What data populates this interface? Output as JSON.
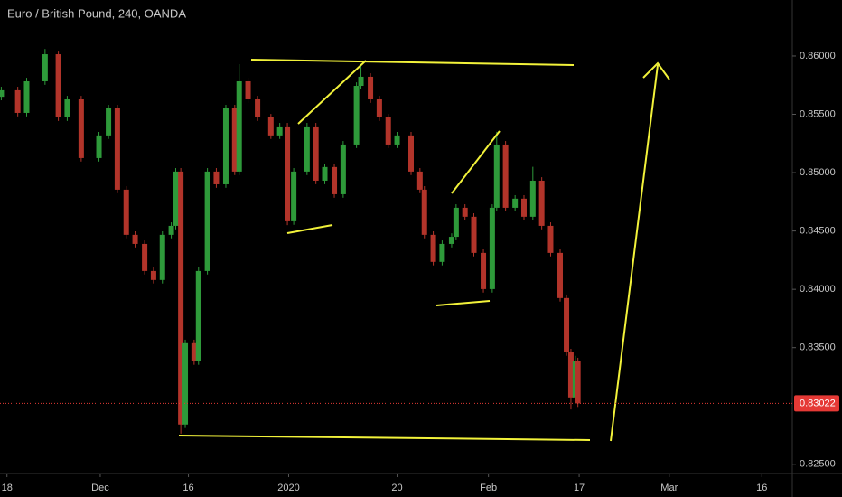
{
  "chart_data": {
    "type": "candlestick",
    "title": "Euro / British Pound, 240, OANDA",
    "x": [
      -0.9,
      1.7,
      3.1,
      6.0,
      8.1,
      9.5,
      11.7,
      14.5,
      16.0,
      17.4,
      18.8,
      20.2,
      21.7,
      23.1,
      24.5,
      25.9,
      26.6,
      27.4,
      28.1,
      29.5,
      30.2,
      31.6,
      33.0,
      34.5,
      35.9,
      36.6,
      38.0,
      39.5,
      41.6,
      43.0,
      44.2,
      45.2,
      47.3,
      48.7,
      50.1,
      51.6,
      53.0,
      55.1,
      55.8,
      57.3,
      58.7,
      60.1,
      61.5,
      63.7,
      65.1,
      65.8,
      67.2,
      68.6,
      70.1,
      70.8,
      72.2,
      73.6,
      75.1,
      76.5,
      77.2,
      78.6,
      80.1,
      81.5,
      82.9,
      84.3,
      85.7,
      87.2,
      88.2,
      88.9,
      89.6,
      90.0
    ],
    "open": [
      0.8565,
      0.85706,
      0.85512,
      0.85783,
      0.86015,
      0.85473,
      0.85628,
      0.85125,
      0.85319,
      0.85551,
      0.84854,
      0.84467,
      0.84389,
      0.84157,
      0.8408,
      0.84467,
      0.84544,
      0.85009,
      0.82841,
      0.83538,
      0.83383,
      0.84157,
      0.85009,
      0.849,
      0.85551,
      0.85009,
      0.85783,
      0.85628,
      0.85473,
      0.85319,
      0.85396,
      0.84583,
      0.85009,
      0.85396,
      0.84931,
      0.85048,
      0.84815,
      0.85241,
      0.85744,
      0.85822,
      0.85628,
      0.85473,
      0.85241,
      0.85319,
      0.85009,
      0.84854,
      0.84467,
      0.84235,
      0.84389,
      0.8445,
      0.84699,
      0.84622,
      0.84312,
      0.84002,
      0.84699,
      0.85241,
      0.84699,
      0.84777,
      0.84622,
      0.84931,
      0.84544,
      0.84312,
      0.83925,
      0.8346,
      0.83073,
      0.83383
    ],
    "high": [
      0.85736,
      0.85736,
      0.85813,
      0.8606,
      0.86045,
      0.85658,
      0.85658,
      0.85349,
      0.85581,
      0.85581,
      0.84884,
      0.84497,
      0.84419,
      0.84187,
      0.84497,
      0.84574,
      0.85039,
      0.85039,
      0.83568,
      0.83568,
      0.84187,
      0.85039,
      0.85039,
      0.85581,
      0.85581,
      0.8593,
      0.85813,
      0.85658,
      0.85503,
      0.85426,
      0.85426,
      0.85039,
      0.85426,
      0.85426,
      0.85078,
      0.85078,
      0.85271,
      0.85774,
      0.8593,
      0.85852,
      0.85658,
      0.85503,
      0.85349,
      0.85349,
      0.85039,
      0.84884,
      0.84497,
      0.84419,
      0.8448,
      0.84729,
      0.84729,
      0.84652,
      0.84342,
      0.84729,
      0.8535,
      0.85271,
      0.84807,
      0.84807,
      0.8505,
      0.84961,
      0.84574,
      0.84342,
      0.83955,
      0.8349,
      0.8343,
      0.83413
    ],
    "low": [
      0.8562,
      0.85482,
      0.85482,
      0.85753,
      0.85443,
      0.85443,
      0.85095,
      0.85095,
      0.85289,
      0.84824,
      0.84437,
      0.84359,
      0.84127,
      0.8405,
      0.8405,
      0.84437,
      0.84514,
      0.82763,
      0.82811,
      0.83353,
      0.83353,
      0.84127,
      0.8487,
      0.8487,
      0.84979,
      0.84979,
      0.85598,
      0.85443,
      0.85289,
      0.85289,
      0.8455,
      0.84553,
      0.84979,
      0.84901,
      0.84901,
      0.84785,
      0.84785,
      0.85211,
      0.85714,
      0.85598,
      0.85443,
      0.85211,
      0.85211,
      0.84979,
      0.84824,
      0.84437,
      0.84205,
      0.84205,
      0.84359,
      0.8442,
      0.84592,
      0.84282,
      0.83972,
      0.83972,
      0.84669,
      0.84669,
      0.84669,
      0.84592,
      0.84592,
      0.84514,
      0.84282,
      0.83895,
      0.8343,
      0.8297,
      0.83043,
      0.82992
    ],
    "close": [
      0.85706,
      0.85512,
      0.85783,
      0.86015,
      0.85473,
      0.85628,
      0.85125,
      0.85319,
      0.85551,
      0.84854,
      0.84467,
      0.84389,
      0.84157,
      0.8408,
      0.84467,
      0.84544,
      0.85009,
      0.82841,
      0.83538,
      0.83383,
      0.84157,
      0.85009,
      0.849,
      0.85551,
      0.85009,
      0.85783,
      0.85628,
      0.85473,
      0.85319,
      0.85396,
      0.84583,
      0.85009,
      0.85396,
      0.84931,
      0.85048,
      0.84815,
      0.85241,
      0.85744,
      0.85822,
      0.85628,
      0.85473,
      0.85241,
      0.85319,
      0.85009,
      0.84854,
      0.84467,
      0.84235,
      0.84389,
      0.8445,
      0.84699,
      0.84622,
      0.84312,
      0.84002,
      0.84699,
      0.85241,
      0.84699,
      0.84777,
      0.84622,
      0.84931,
      0.84544,
      0.84312,
      0.83925,
      0.8346,
      0.83073,
      0.83383,
      0.83022
    ],
    "up_color": "#2e9a3a",
    "down_color": "#b2342a",
    "last_price": {
      "value": 0.83022,
      "label": "0.83022",
      "color": "#e53935"
    },
    "xlim": [
      -1.1,
      123.8
    ],
    "xticks": [
      {
        "value": 0,
        "label": "18"
      },
      {
        "value": 14.7,
        "label": "Dec"
      },
      {
        "value": 28.6,
        "label": "16"
      },
      {
        "value": 44.4,
        "label": "2020"
      },
      {
        "value": 61.5,
        "label": "20"
      },
      {
        "value": 75.9,
        "label": "Feb"
      },
      {
        "value": 90.2,
        "label": "17"
      },
      {
        "value": 104.4,
        "label": "Mar"
      },
      {
        "value": 119,
        "label": "16"
      }
    ],
    "ylim": [
      0.8239,
      0.8648
    ],
    "yticks": [
      {
        "value": 0.825,
        "label": "0.82500"
      },
      {
        "value": 0.835,
        "label": "0.83500"
      },
      {
        "value": 0.84,
        "label": "0.84000"
      },
      {
        "value": 0.845,
        "label": "0.84500"
      },
      {
        "value": 0.85,
        "label": "0.85000"
      },
      {
        "value": 0.855,
        "label": "0.85500"
      },
      {
        "value": 0.86,
        "label": "0.86000"
      }
    ]
  }
}
